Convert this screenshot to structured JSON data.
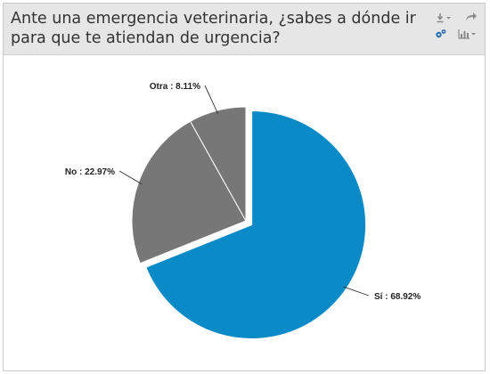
{
  "header": {
    "title": "Ante una emergencia veterinaria, ¿sabes a dónde ir para que te atiendan de urgencia?"
  },
  "toolbar": {
    "icons": [
      "download-icon",
      "share-icon",
      "settings-icon",
      "chart-type-icon"
    ]
  },
  "chart_data": {
    "type": "pie",
    "title": "Ante una emergencia veterinaria, ¿sabes a dónde ir para que te atiendan de urgencia?",
    "slices": [
      {
        "name": "Sí",
        "value": 68.92,
        "label": "Sí : 68.92%",
        "color": "#0a8ac7",
        "exploded": true
      },
      {
        "name": "No",
        "value": 22.97,
        "label": "No : 22.97%",
        "color": "#777777",
        "exploded": false
      },
      {
        "name": "Otra",
        "value": 8.11,
        "label": "Otra : 8.11%",
        "color": "#777777",
        "exploded": false
      }
    ]
  }
}
